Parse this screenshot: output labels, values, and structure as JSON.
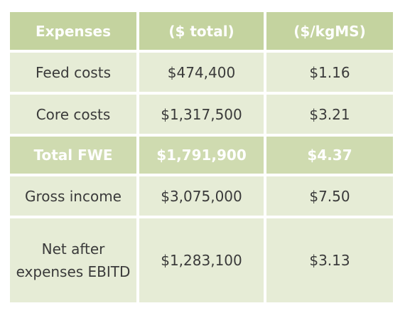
{
  "table": {
    "headers": [
      "Expenses",
      "($ total)",
      "($/kgMS)"
    ],
    "rows": [
      {
        "label": "Feed costs",
        "total": "$474,400",
        "per_kgms": "$1.16"
      },
      {
        "label": "Core costs",
        "total": "$1,317,500",
        "per_kgms": "$3.21"
      },
      {
        "label": "Total FWE",
        "total": "$1,791,900",
        "per_kgms": "$4.37"
      },
      {
        "label": "Gross income",
        "total": "$3,075,000",
        "per_kgms": "$7.50"
      },
      {
        "label": "Net after expenses EBITD",
        "total": "$1,283,100",
        "per_kgms": "$3.13"
      }
    ]
  },
  "colors": {
    "header_bg": "#c4d39f",
    "row_bg": "#e6ecd6",
    "highlight_row_bg": "#cfdbb0"
  }
}
